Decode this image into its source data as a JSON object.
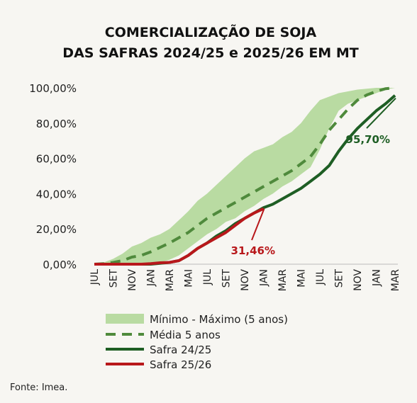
{
  "chart_data": {
    "type": "line",
    "title_lines": [
      "COMERCIALIZAÇÃO DE SOJA",
      "DAS SAFRAS 2024/25 e 2025/26 EM MT"
    ],
    "ylim": [
      0,
      100
    ],
    "yticks": [
      "0,00%",
      "20,00%",
      "40,00%",
      "60,00%",
      "80,00%",
      "100,00%"
    ],
    "ytick_values": [
      0,
      20,
      40,
      60,
      80,
      100
    ],
    "x_ticks": [
      "JUL",
      "SET",
      "NOV",
      "JAN",
      "MAR",
      "MAI",
      "JUL",
      "SET",
      "NOV",
      "JAN",
      "MAR",
      "MAI",
      "JUL",
      "SET",
      "NOV",
      "JAN",
      "MAR"
    ],
    "x_months": [
      0,
      1,
      2,
      3,
      4,
      5,
      6,
      7,
      8,
      9,
      10,
      11,
      12,
      13,
      14,
      15,
      16,
      17,
      18,
      19,
      20,
      21,
      22,
      23,
      24,
      25,
      26,
      27,
      28,
      29,
      30,
      31,
      32
    ],
    "band": {
      "name": "Mínimo - Máximo (5 anos)",
      "min": [
        0,
        0,
        0,
        0,
        0,
        0,
        0.5,
        1,
        2.5,
        5,
        9,
        13,
        17,
        20,
        24,
        26,
        30,
        33,
        37,
        40,
        44,
        47,
        51,
        55,
        65,
        77,
        87,
        91,
        93,
        95,
        97,
        99,
        100
      ],
      "max": [
        0,
        1,
        3,
        6,
        10,
        12,
        15,
        17,
        20,
        25,
        30,
        36,
        40,
        45,
        50,
        55,
        60,
        64,
        66,
        68,
        72,
        75,
        80,
        87,
        93,
        95,
        97,
        98,
        99,
        99.5,
        100,
        100,
        100
      ]
    },
    "series": [
      {
        "name": "Média 5 anos",
        "values": [
          0,
          0.3,
          1,
          2,
          4,
          5,
          7,
          9.5,
          12,
          15,
          18,
          22,
          26,
          29,
          32,
          35,
          38,
          41,
          44,
          47,
          50,
          53,
          57,
          61,
          68,
          76,
          82,
          88,
          93,
          96,
          98,
          99.5,
          100
        ]
      },
      {
        "name": "Safra 24/25",
        "values": [
          0,
          0,
          0,
          0,
          0,
          0,
          0,
          0.5,
          1,
          2,
          5,
          9,
          12,
          16,
          19,
          23,
          26,
          29,
          32,
          34,
          37,
          40,
          43,
          47,
          51,
          56,
          64,
          71,
          77,
          82,
          87,
          91,
          95.7
        ]
      },
      {
        "name": "Safra 25/26",
        "values": [
          0,
          0,
          0,
          0,
          0,
          0,
          0.3,
          0.8,
          1,
          2,
          5,
          9,
          12,
          15,
          18,
          22,
          26,
          29,
          31.46
        ]
      }
    ],
    "annotations": [
      {
        "series": "Safra 24/25",
        "label": "95,70%",
        "month": 32,
        "value": 95.7
      },
      {
        "series": "Safra 25/26",
        "label": "31,46%",
        "month": 18,
        "value": 31.46
      }
    ],
    "colors": {
      "band": "#b9dba2",
      "avg": "#4f8a3c",
      "s2425": "#1e5e24",
      "s2526": "#b8181b",
      "ann2425": "#1e5e24",
      "ann2526": "#b8181b"
    },
    "legend": [
      "Mínimo - Máximo (5 anos)",
      "Média 5 anos",
      "Safra 24/25",
      "Safra 25/26"
    ],
    "source": "Fonte: Imea."
  }
}
